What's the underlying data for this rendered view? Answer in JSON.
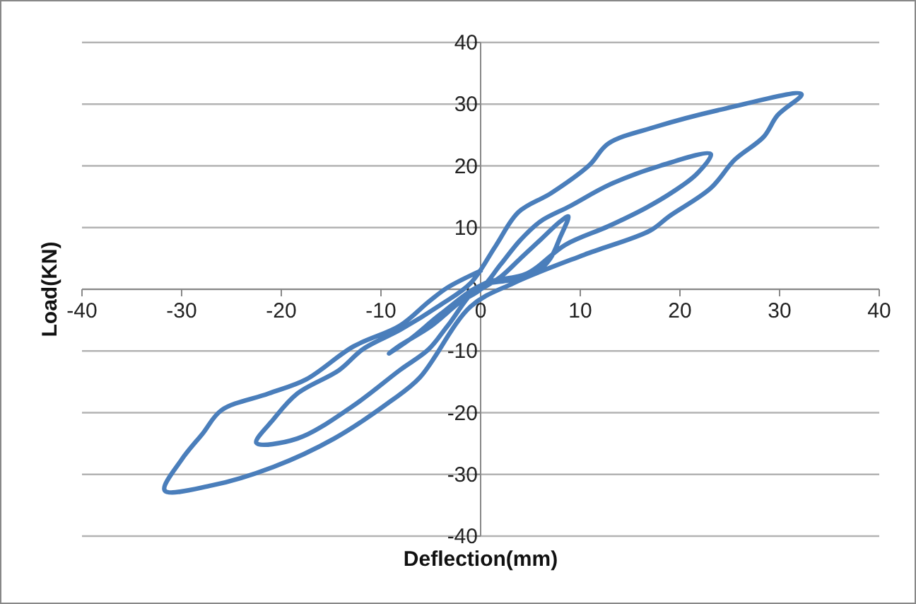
{
  "chart_data": {
    "type": "line",
    "xlabel": "Deflection(mm)",
    "ylabel": "Load(KN)",
    "xlim": [
      -40,
      40
    ],
    "ylim": [
      -40,
      40
    ],
    "xticks": [
      -40,
      -30,
      -20,
      -10,
      0,
      10,
      20,
      30,
      40
    ],
    "yticks": [
      -40,
      -30,
      -20,
      -10,
      0,
      10,
      20,
      30,
      40
    ],
    "grid": "y",
    "marker": "none",
    "line_style": "solid",
    "series": [
      {
        "color": "#4a7ebb",
        "x": [
          0,
          2,
          4,
          6,
          8,
          8.8,
          8,
          7,
          5.7,
          3,
          0,
          -4,
          -7,
          -9.2,
          -8,
          -5,
          -2,
          0,
          2,
          4,
          6,
          9,
          13,
          18,
          23.1,
          21.7,
          19.4,
          16.6,
          12.8,
          8.5,
          4.7,
          0,
          -3.3,
          -5.2,
          -8.1,
          -12.8,
          -18.4,
          -22.5,
          -20.8,
          -18.4,
          -14.2,
          -11.8,
          -8,
          -4,
          -1,
          1.5,
          3.8,
          7.1,
          10.9,
          12.8,
          17.5,
          24.6,
          32.2,
          29.8,
          28.4,
          25.5,
          23.1,
          18.9,
          17,
          10.4,
          3.3,
          -1,
          -6.1,
          -9,
          -14.7,
          -20.8,
          -27,
          -31.7,
          -30,
          -27.9,
          -26,
          -21.3,
          -17.5,
          -12.8,
          -8.1,
          -5.2,
          -3.3,
          0
        ],
        "values": [
          0,
          2,
          5,
          8,
          11,
          11.8,
          8.5,
          5,
          2.9,
          1.5,
          0.6,
          -4,
          -8,
          -10.4,
          -9,
          -6,
          -2,
          0,
          4,
          8,
          11,
          13.5,
          17,
          20,
          21.9,
          18.7,
          15.9,
          13.2,
          10.2,
          7.2,
          2.6,
          0.6,
          -5.9,
          -9.7,
          -13.1,
          -18.9,
          -24.2,
          -24.9,
          -21.1,
          -16.9,
          -13.1,
          -9.7,
          -6.5,
          -2.5,
          1,
          7,
          12.5,
          15.6,
          20.1,
          23.6,
          26.3,
          29.3,
          31.6,
          28.2,
          24.7,
          21,
          16.4,
          11.8,
          9.5,
          5.6,
          1,
          -2.8,
          -14.3,
          -18.1,
          -24.2,
          -28.8,
          -31.8,
          -32.6,
          -27.6,
          -23.4,
          -19.6,
          -16.9,
          -14.6,
          -9.3,
          -5.9,
          -2,
          0.3,
          3
        ]
      }
    ]
  }
}
